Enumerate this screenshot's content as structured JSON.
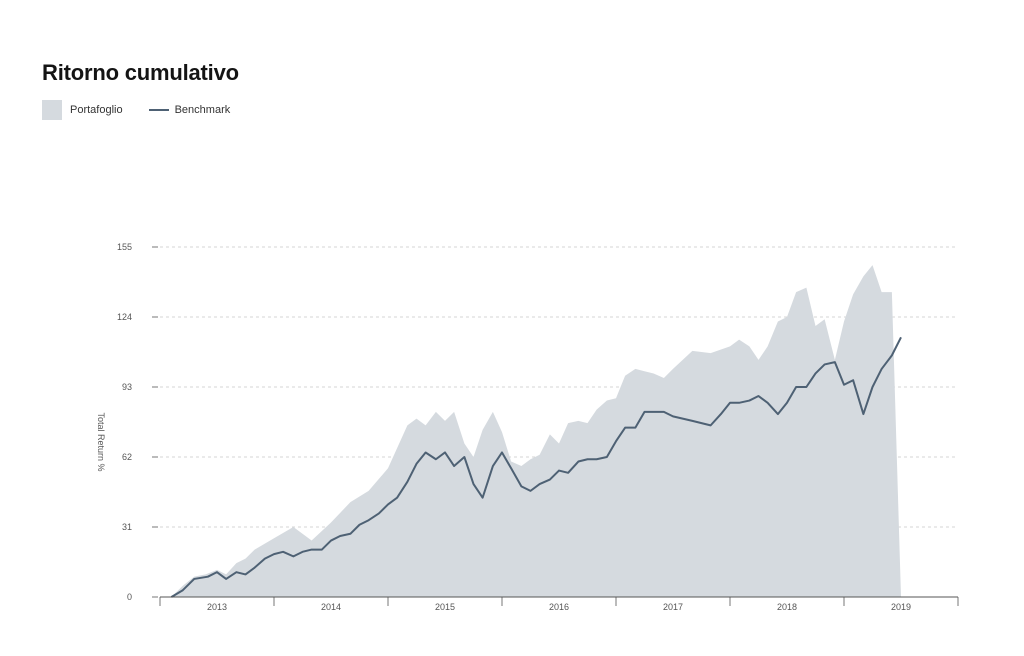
{
  "header": {
    "title": "Ritorno cumulativo"
  },
  "legend": {
    "area_label": "Portafoglio",
    "line_label": "Benchmark"
  },
  "colors": {
    "area": "#d5dadf",
    "line": "#4e6174",
    "grid": "#c9c9c9",
    "axis": "#555555"
  },
  "chart_data": {
    "type": "area",
    "ylabel": "Total Return %",
    "ylim": [
      0,
      155
    ],
    "yticks": [
      0,
      31,
      62,
      93,
      124,
      155
    ],
    "xlim": [
      2012.5,
      2019.5
    ],
    "xtick_labels": [
      "2013",
      "2014",
      "2015",
      "2016",
      "2017",
      "2018",
      "2019"
    ],
    "grid": true,
    "legend_position": "top-left",
    "series": [
      {
        "name": "Portafoglio",
        "kind": "area",
        "x": [
          2012.6,
          2012.7,
          2012.8,
          2012.9,
          2013.0,
          2013.08,
          2013.17,
          2013.25,
          2013.33,
          2013.5,
          2013.67,
          2013.83,
          2014.0,
          2014.17,
          2014.33,
          2014.5,
          2014.67,
          2014.75,
          2014.83,
          2014.92,
          2015.0,
          2015.08,
          2015.17,
          2015.25,
          2015.33,
          2015.42,
          2015.5,
          2015.58,
          2015.67,
          2015.75,
          2015.83,
          2015.92,
          2016.0,
          2016.08,
          2016.17,
          2016.25,
          2016.33,
          2016.42,
          2016.5,
          2016.58,
          2016.67,
          2016.75,
          2016.83,
          2016.92,
          2017.0,
          2017.17,
          2017.33,
          2017.5,
          2017.58,
          2017.67,
          2017.75,
          2017.83,
          2017.92,
          2018.0,
          2018.08,
          2018.17,
          2018.25,
          2018.33,
          2018.42,
          2018.5,
          2018.58,
          2018.67,
          2018.75,
          2018.83,
          2018.92,
          2019.0,
          2019.08
        ],
        "values": [
          0,
          5,
          9,
          10,
          12,
          10,
          15,
          17,
          21,
          26,
          31,
          25,
          33,
          42,
          47,
          57,
          76,
          79,
          76,
          82,
          78,
          82,
          68,
          62,
          74,
          82,
          73,
          60,
          58,
          61,
          63,
          72,
          68,
          77,
          78,
          77,
          83,
          87,
          88,
          98,
          101,
          100,
          99,
          97,
          101,
          109,
          108,
          111,
          114,
          111,
          105,
          111,
          122,
          124,
          135,
          137,
          120,
          123,
          105,
          122,
          134,
          142,
          147,
          135,
          135,
          0,
          0
        ]
      },
      {
        "name": "Benchmark",
        "kind": "line",
        "x": [
          2012.6,
          2012.7,
          2012.8,
          2012.92,
          2013.0,
          2013.08,
          2013.17,
          2013.25,
          2013.33,
          2013.42,
          2013.5,
          2013.58,
          2013.67,
          2013.75,
          2013.83,
          2013.92,
          2014.0,
          2014.08,
          2014.17,
          2014.25,
          2014.33,
          2014.42,
          2014.5,
          2014.58,
          2014.67,
          2014.75,
          2014.83,
          2014.92,
          2015.0,
          2015.08,
          2015.17,
          2015.25,
          2015.33,
          2015.42,
          2015.5,
          2015.58,
          2015.67,
          2015.75,
          2015.83,
          2015.92,
          2016.0,
          2016.08,
          2016.17,
          2016.25,
          2016.33,
          2016.42,
          2016.5,
          2016.58,
          2016.67,
          2016.75,
          2016.83,
          2016.92,
          2017.0,
          2017.17,
          2017.33,
          2017.42,
          2017.5,
          2017.58,
          2017.67,
          2017.75,
          2017.83,
          2017.92,
          2018.0,
          2018.08,
          2018.17,
          2018.25,
          2018.33,
          2018.42,
          2018.5,
          2018.58,
          2018.67,
          2018.75,
          2018.83,
          2018.92,
          2019.0
        ],
        "values": [
          0,
          3,
          8,
          9,
          11,
          8,
          11,
          10,
          13,
          17,
          19,
          20,
          18,
          20,
          21,
          21,
          25,
          27,
          28,
          32,
          34,
          37,
          41,
          44,
          51,
          59,
          64,
          61,
          64,
          58,
          62,
          50,
          44,
          58,
          64,
          57,
          49,
          47,
          50,
          52,
          56,
          55,
          60,
          61,
          61,
          62,
          69,
          75,
          75,
          82,
          82,
          82,
          80,
          78,
          76,
          81,
          86,
          86,
          87,
          89,
          86,
          81,
          86,
          93,
          93,
          99,
          103,
          104,
          94,
          96,
          81,
          93,
          101,
          107,
          115
        ]
      }
    ]
  }
}
